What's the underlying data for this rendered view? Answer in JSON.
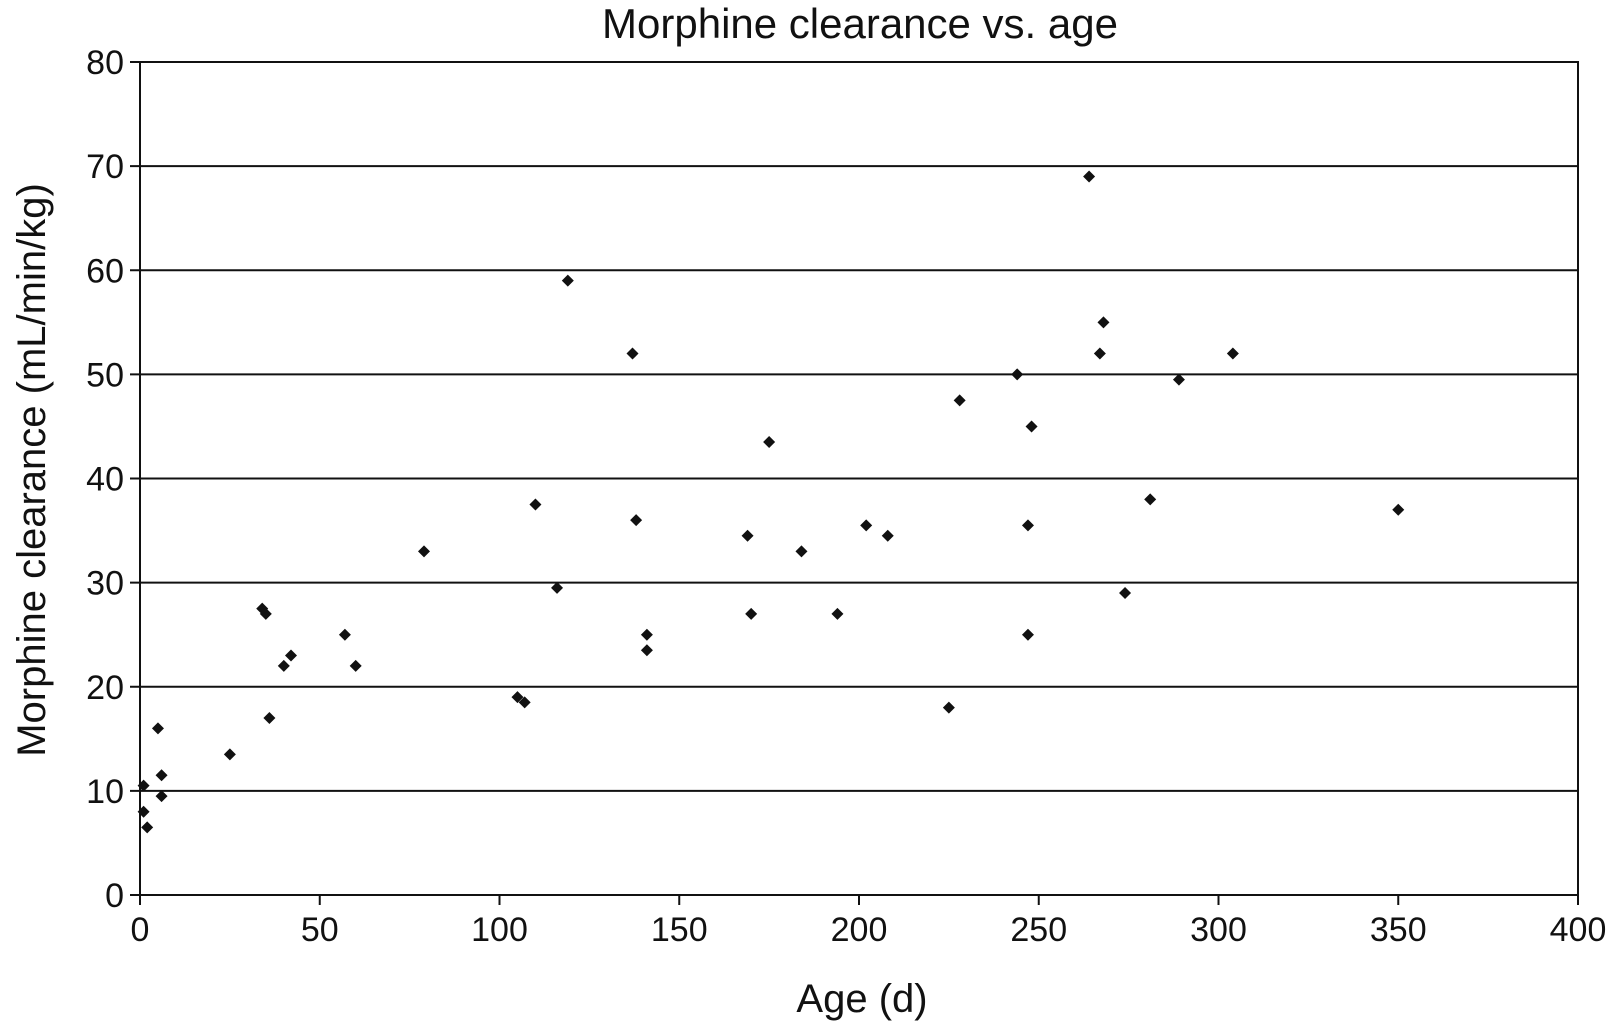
{
  "chart_data": {
    "type": "scatter",
    "title": "Morphine clearance vs. age",
    "xlabel": "Age (d)",
    "ylabel": "Morphine clearance (mL/min/kg)",
    "xlim": [
      0,
      400
    ],
    "ylim": [
      0,
      80
    ],
    "x_ticks": [
      0,
      50,
      100,
      150,
      200,
      250,
      300,
      350,
      400
    ],
    "y_ticks": [
      0,
      10,
      20,
      30,
      40,
      50,
      60,
      70,
      80
    ],
    "grid": "horizontal",
    "legend": "none",
    "marker": "diamond",
    "marker_color": "#111111",
    "points": [
      [
        1,
        10.5
      ],
      [
        1,
        8
      ],
      [
        2,
        6.5
      ],
      [
        5,
        16
      ],
      [
        6,
        11.5
      ],
      [
        6,
        9.5
      ],
      [
        25,
        13.5
      ],
      [
        34,
        27.5
      ],
      [
        35,
        27
      ],
      [
        36,
        17
      ],
      [
        40,
        22
      ],
      [
        42,
        23
      ],
      [
        57,
        25
      ],
      [
        60,
        22
      ],
      [
        79,
        33
      ],
      [
        105,
        19
      ],
      [
        107,
        18.5
      ],
      [
        110,
        37.5
      ],
      [
        116,
        29.5
      ],
      [
        119,
        59
      ],
      [
        137,
        52
      ],
      [
        138,
        36
      ],
      [
        141,
        25
      ],
      [
        141,
        23.5
      ],
      [
        169,
        34.5
      ],
      [
        170,
        27
      ],
      [
        175,
        43.5
      ],
      [
        184,
        33
      ],
      [
        194,
        27
      ],
      [
        202,
        35.5
      ],
      [
        208,
        34.5
      ],
      [
        225,
        18
      ],
      [
        228,
        47.5
      ],
      [
        244,
        50
      ],
      [
        247,
        35.5
      ],
      [
        247,
        25
      ],
      [
        248,
        45
      ],
      [
        264,
        69
      ],
      [
        267,
        52
      ],
      [
        268,
        55
      ],
      [
        274,
        29
      ],
      [
        281,
        38
      ],
      [
        289,
        49.5
      ],
      [
        304,
        52
      ],
      [
        350,
        37
      ]
    ]
  }
}
